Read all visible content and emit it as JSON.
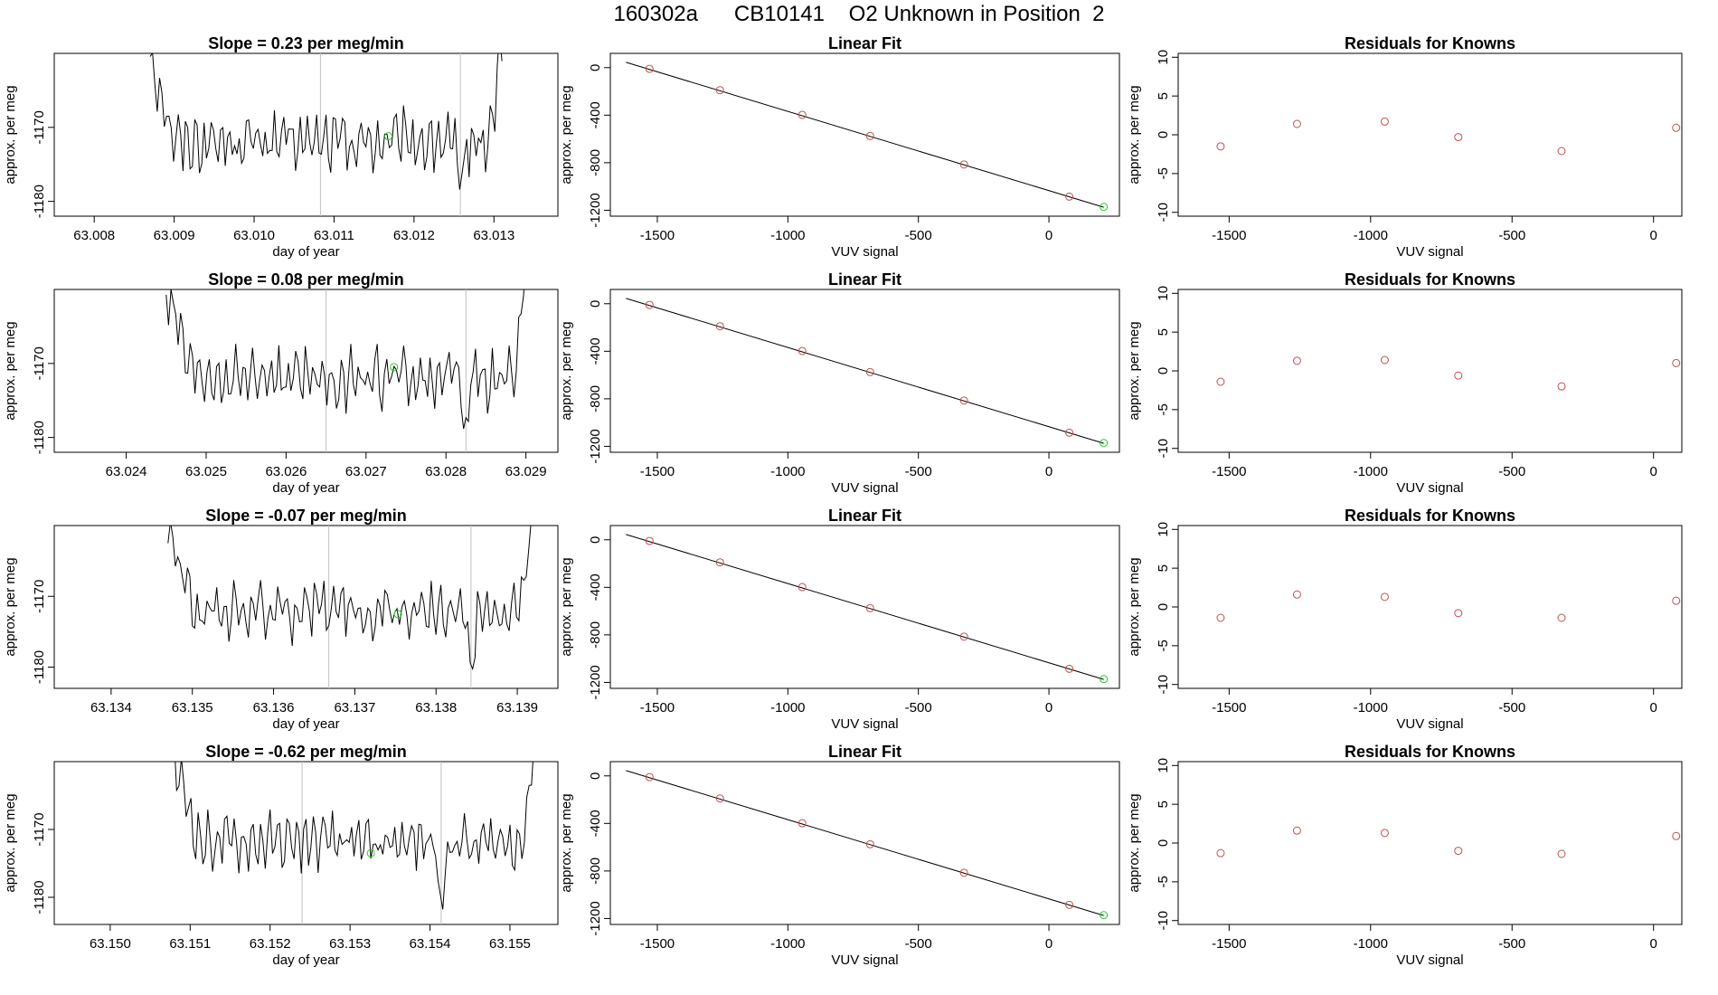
{
  "figure": {
    "title": "160302a      CB10141    O2 Unknown in Position  2",
    "colors": {
      "trace": "#000000",
      "known": "#c0504d",
      "unknown": "#22cc22",
      "vline": "#c0c0c0"
    }
  },
  "chart_data": [
    {
      "row": 1,
      "type": "line",
      "title": "Slope =  0.23  per meg/min",
      "xlabel": "day of year",
      "ylabel": "approx. per meg",
      "xlim": [
        63.0075,
        63.0138
      ],
      "ylim": [
        -1182,
        -1160
      ],
      "xticks": [
        63.008,
        63.009,
        63.01,
        63.011,
        63.012,
        63.013
      ],
      "xtick_labels": [
        "63.008",
        "63.009",
        "63.010",
        "63.011",
        "63.012",
        "63.013"
      ],
      "yticks": [
        -1180,
        -1170
      ],
      "ytick_labels": [
        "-1180",
        "-1170"
      ],
      "trace_x_range": [
        63.0087,
        63.0131
      ],
      "vlines": [
        63.01083,
        63.01258
      ],
      "unknown_point": {
        "x": 63.01168,
        "y": -1171.2
      }
    },
    {
      "row": 1,
      "type": "scatter",
      "title": "Linear Fit",
      "xlabel": "VUV signal",
      "ylabel": "approx. per meg",
      "xlim": [
        -1680,
        270
      ],
      "ylim": [
        -1250,
        120
      ],
      "xticks": [
        -1500,
        -1000,
        -500,
        0
      ],
      "xtick_labels": [
        "-1500",
        "-1000",
        "-500",
        "0"
      ],
      "yticks": [
        -1200,
        -800,
        -400,
        0
      ],
      "ytick_labels": [
        "-1200",
        "-800",
        "-400",
        "0"
      ],
      "fit_line": [
        [
          -1620,
          45
        ],
        [
          210,
          -1175
        ]
      ],
      "knowns": [
        [
          -1530,
          -10
        ],
        [
          -1260,
          -190
        ],
        [
          -945,
          -398
        ],
        [
          -685,
          -575
        ],
        [
          -325,
          -815
        ],
        [
          78,
          -1085
        ]
      ],
      "unknown": [
        210,
        -1172
      ]
    },
    {
      "row": 1,
      "type": "scatter",
      "title": "Residuals for Knowns",
      "xlabel": "VUV signal",
      "ylabel": "approx. per meg",
      "xlim": [
        -1680,
        100
      ],
      "ylim": [
        -10.5,
        10.5
      ],
      "xticks": [
        -1500,
        -1000,
        -500,
        0
      ],
      "xtick_labels": [
        "-1500",
        "-1000",
        "-500",
        "0"
      ],
      "yticks": [
        -10,
        -5,
        0,
        5,
        10
      ],
      "ytick_labels": [
        "-10",
        "-5",
        "0",
        "5",
        "10"
      ],
      "points": [
        [
          -1530,
          -1.5
        ],
        [
          -1260,
          1.4
        ],
        [
          -950,
          1.7
        ],
        [
          -690,
          -0.3
        ],
        [
          -325,
          -2.1
        ],
        [
          80,
          0.9
        ]
      ]
    },
    {
      "row": 2,
      "type": "line",
      "title": "Slope =  0.08  per meg/min",
      "xlabel": "day of year",
      "ylabel": "approx. per meg",
      "xlim": [
        63.0231,
        63.0294
      ],
      "ylim": [
        -1182,
        -1160
      ],
      "xticks": [
        63.024,
        63.025,
        63.026,
        63.027,
        63.028,
        63.029
      ],
      "xtick_labels": [
        "63.024",
        "63.025",
        "63.026",
        "63.027",
        "63.028",
        "63.029"
      ],
      "yticks": [
        -1180,
        -1170
      ],
      "ytick_labels": [
        "-1180",
        "-1170"
      ],
      "trace_x_range": [
        63.0245,
        63.029
      ],
      "vlines": [
        63.0265,
        63.02825
      ],
      "unknown_point": {
        "x": 63.02735,
        "y": -1170.5
      }
    },
    {
      "row": 2,
      "type": "scatter",
      "title": "Linear Fit",
      "xlabel": "VUV signal",
      "ylabel": "approx. per meg",
      "xlim": [
        -1680,
        270
      ],
      "ylim": [
        -1250,
        120
      ],
      "xticks": [
        -1500,
        -1000,
        -500,
        0
      ],
      "xtick_labels": [
        "-1500",
        "-1000",
        "-500",
        "0"
      ],
      "yticks": [
        -1200,
        -800,
        -400,
        0
      ],
      "ytick_labels": [
        "-1200",
        "-800",
        "-400",
        "0"
      ],
      "fit_line": [
        [
          -1620,
          45
        ],
        [
          210,
          -1175
        ]
      ],
      "knowns": [
        [
          -1530,
          -10
        ],
        [
          -1260,
          -190
        ],
        [
          -945,
          -398
        ],
        [
          -685,
          -575
        ],
        [
          -325,
          -815
        ],
        [
          78,
          -1085
        ]
      ],
      "unknown": [
        210,
        -1172
      ]
    },
    {
      "row": 2,
      "type": "scatter",
      "title": "Residuals for Knowns",
      "xlabel": "VUV signal",
      "ylabel": "approx. per meg",
      "xlim": [
        -1680,
        100
      ],
      "ylim": [
        -10.5,
        10.5
      ],
      "xticks": [
        -1500,
        -1000,
        -500,
        0
      ],
      "xtick_labels": [
        "-1500",
        "-1000",
        "-500",
        "0"
      ],
      "yticks": [
        -10,
        -5,
        0,
        5,
        10
      ],
      "ytick_labels": [
        "-10",
        "-5",
        "0",
        "5",
        "10"
      ],
      "points": [
        [
          -1530,
          -1.4
        ],
        [
          -1260,
          1.3
        ],
        [
          -950,
          1.4
        ],
        [
          -690,
          -0.6
        ],
        [
          -325,
          -2.0
        ],
        [
          80,
          1.0
        ]
      ]
    },
    {
      "row": 3,
      "type": "line",
      "title": "Slope =  -0.07  per meg/min",
      "xlabel": "day of year",
      "ylabel": "approx. per meg",
      "xlim": [
        63.1333,
        63.1395
      ],
      "ylim": [
        -1183,
        -1160
      ],
      "xticks": [
        63.134,
        63.135,
        63.136,
        63.137,
        63.138,
        63.139
      ],
      "xtick_labels": [
        "63.134",
        "63.135",
        "63.136",
        "63.137",
        "63.138",
        "63.139"
      ],
      "yticks": [
        -1180,
        -1170
      ],
      "ytick_labels": [
        "-1180",
        "-1170"
      ],
      "trace_x_range": [
        63.1347,
        63.1392
      ],
      "vlines": [
        63.13668,
        63.13843
      ],
      "unknown_point": {
        "x": 63.13753,
        "y": -1172.5
      }
    },
    {
      "row": 3,
      "type": "scatter",
      "title": "Linear Fit",
      "xlabel": "VUV signal",
      "ylabel": "approx. per meg",
      "xlim": [
        -1680,
        270
      ],
      "ylim": [
        -1250,
        120
      ],
      "xticks": [
        -1500,
        -1000,
        -500,
        0
      ],
      "xtick_labels": [
        "-1500",
        "-1000",
        "-500",
        "0"
      ],
      "yticks": [
        -1200,
        -800,
        -400,
        0
      ],
      "ytick_labels": [
        "-1200",
        "-800",
        "-400",
        "0"
      ],
      "fit_line": [
        [
          -1620,
          45
        ],
        [
          210,
          -1175
        ]
      ],
      "knowns": [
        [
          -1530,
          -10
        ],
        [
          -1260,
          -190
        ],
        [
          -945,
          -398
        ],
        [
          -685,
          -575
        ],
        [
          -325,
          -815
        ],
        [
          78,
          -1085
        ]
      ],
      "unknown": [
        210,
        -1172
      ]
    },
    {
      "row": 3,
      "type": "scatter",
      "title": "Residuals for Knowns",
      "xlabel": "VUV signal",
      "ylabel": "approx. per meg",
      "xlim": [
        -1680,
        100
      ],
      "ylim": [
        -10.5,
        10.5
      ],
      "xticks": [
        -1500,
        -1000,
        -500,
        0
      ],
      "xtick_labels": [
        "-1500",
        "-1000",
        "-500",
        "0"
      ],
      "yticks": [
        -10,
        -5,
        0,
        5,
        10
      ],
      "ytick_labels": [
        "-10",
        "-5",
        "0",
        "5",
        "10"
      ],
      "points": [
        [
          -1530,
          -1.4
        ],
        [
          -1260,
          1.6
        ],
        [
          -950,
          1.3
        ],
        [
          -690,
          -0.8
        ],
        [
          -325,
          -1.4
        ],
        [
          80,
          0.8
        ]
      ]
    },
    {
      "row": 4,
      "type": "line",
      "title": "Slope =  -0.62  per meg/min",
      "xlabel": "day of year",
      "ylabel": "approx. per meg",
      "xlim": [
        63.1493,
        63.1556
      ],
      "ylim": [
        -1184,
        -1160
      ],
      "xticks": [
        63.15,
        63.151,
        63.152,
        63.153,
        63.154,
        63.155
      ],
      "xtick_labels": [
        "63.150",
        "63.151",
        "63.152",
        "63.153",
        "63.154",
        "63.155"
      ],
      "yticks": [
        -1180,
        -1170
      ],
      "ytick_labels": [
        "-1180",
        "-1170"
      ],
      "trace_x_range": [
        63.1508,
        63.1553
      ],
      "vlines": [
        63.1524,
        63.15414
      ],
      "unknown_point": {
        "x": 63.15326,
        "y": -1173.5
      }
    },
    {
      "row": 4,
      "type": "scatter",
      "title": "Linear Fit",
      "xlabel": "VUV signal",
      "ylabel": "approx. per meg",
      "xlim": [
        -1680,
        270
      ],
      "ylim": [
        -1250,
        120
      ],
      "xticks": [
        -1500,
        -1000,
        -500,
        0
      ],
      "xtick_labels": [
        "-1500",
        "-1000",
        "-500",
        "0"
      ],
      "yticks": [
        -1200,
        -800,
        -400,
        0
      ],
      "ytick_labels": [
        "-1200",
        "-800",
        "-400",
        "0"
      ],
      "fit_line": [
        [
          -1620,
          45
        ],
        [
          210,
          -1175
        ]
      ],
      "knowns": [
        [
          -1530,
          -10
        ],
        [
          -1260,
          -190
        ],
        [
          -945,
          -398
        ],
        [
          -685,
          -575
        ],
        [
          -325,
          -815
        ],
        [
          78,
          -1085
        ]
      ],
      "unknown": [
        210,
        -1172
      ]
    },
    {
      "row": 4,
      "type": "scatter",
      "title": "Residuals for Knowns",
      "xlabel": "VUV signal",
      "ylabel": "approx. per meg",
      "xlim": [
        -1680,
        100
      ],
      "ylim": [
        -10.5,
        10.5
      ],
      "xticks": [
        -1500,
        -1000,
        -500,
        0
      ],
      "xtick_labels": [
        "-1500",
        "-1000",
        "-500",
        "0"
      ],
      "yticks": [
        -10,
        -5,
        0,
        5,
        10
      ],
      "ytick_labels": [
        "-10",
        "-5",
        "0",
        "5",
        "10"
      ],
      "points": [
        [
          -1530,
          -1.3
        ],
        [
          -1260,
          1.6
        ],
        [
          -950,
          1.3
        ],
        [
          -690,
          -1.0
        ],
        [
          -325,
          -1.4
        ],
        [
          80,
          0.9
        ]
      ]
    }
  ]
}
